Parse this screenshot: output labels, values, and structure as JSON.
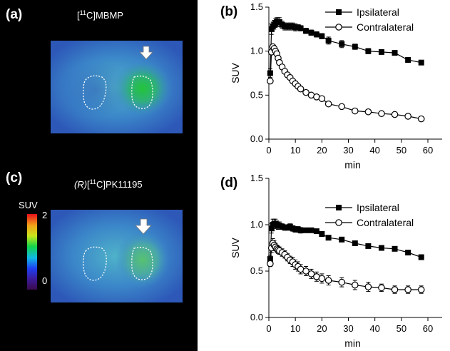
{
  "panels": {
    "a": {
      "letter": "(a)",
      "tracer_prefix": "[",
      "tracer_sup": "11",
      "tracer_suffix": "C]MBMP"
    },
    "c": {
      "letter": "(c)",
      "tracer_prefix_italic": "(R)",
      "tracer_prefix": "[",
      "tracer_sup": "11",
      "tracer_suffix": "C]PK11195"
    },
    "colorbar": {
      "label": "SUV",
      "max_label": "2",
      "min_label": "0"
    }
  },
  "chart_data": [
    {
      "panel": "(b)",
      "type": "line",
      "xlabel": "min",
      "ylabel": "SUV",
      "xlim": [
        0,
        60
      ],
      "ylim": [
        0,
        1.5
      ],
      "xticks": [
        "0",
        "10",
        "20",
        "30",
        "40",
        "50",
        "60"
      ],
      "yticks": [
        "0.0",
        "0.5",
        "1.0",
        "1.5"
      ],
      "legend_position": "top-right",
      "series": [
        {
          "name": "Ipsilateral",
          "marker": "filled-square",
          "x": [
            0.5,
            1,
            1.5,
            2,
            2.5,
            3,
            3.5,
            4,
            5,
            6,
            7,
            8,
            9,
            10,
            11,
            12,
            14,
            16,
            18,
            20,
            22.5,
            27.5,
            32.5,
            37.5,
            42.5,
            47.5,
            52.5,
            57.5
          ],
          "y": [
            0.75,
            1.25,
            1.28,
            1.3,
            1.32,
            1.33,
            1.33,
            1.33,
            1.3,
            1.28,
            1.28,
            1.28,
            1.28,
            1.27,
            1.27,
            1.26,
            1.23,
            1.21,
            1.19,
            1.17,
            1.12,
            1.08,
            1.05,
            1.0,
            0.99,
            0.98,
            0.9,
            0.87
          ],
          "err": [
            0.05,
            0.06,
            0.05,
            0.05,
            0.05,
            0.05,
            0.05,
            0.05,
            0.04,
            0.04,
            0.04,
            0.04,
            0.04,
            0.04,
            0.03,
            0.03,
            0.03,
            0.03,
            0.03,
            0.03,
            0.04,
            0.04,
            0.03,
            0.03,
            0.02,
            0.02,
            0.02,
            0.02
          ]
        },
        {
          "name": "Contralateral",
          "marker": "open-circle",
          "x": [
            0.5,
            1,
            1.5,
            2,
            2.5,
            3,
            3.5,
            4,
            5,
            6,
            7,
            8,
            9,
            10,
            11,
            12,
            14,
            16,
            18,
            20,
            22.5,
            27.5,
            32.5,
            37.5,
            42.5,
            47.5,
            52.5,
            57.5
          ],
          "y": [
            0.66,
            0.99,
            1.05,
            1.03,
            1.0,
            0.97,
            0.92,
            0.87,
            0.82,
            0.77,
            0.73,
            0.7,
            0.66,
            0.63,
            0.6,
            0.57,
            0.53,
            0.5,
            0.48,
            0.46,
            0.4,
            0.37,
            0.32,
            0.31,
            0.29,
            0.28,
            0.26,
            0.23
          ]
        }
      ]
    },
    {
      "panel": "(d)",
      "type": "line",
      "xlabel": "min",
      "ylabel": "SUV",
      "xlim": [
        0,
        60
      ],
      "ylim": [
        0,
        1.5
      ],
      "xticks": [
        "0",
        "10",
        "20",
        "30",
        "40",
        "50",
        "60"
      ],
      "yticks": [
        "0.0",
        "0.5",
        "1.0",
        "1.5"
      ],
      "legend_position": "top-right",
      "series": [
        {
          "name": "Ipsilateral",
          "marker": "filled-square",
          "x": [
            0.5,
            1,
            1.5,
            2,
            2.5,
            3,
            3.5,
            4,
            5,
            6,
            7,
            8,
            9,
            10,
            11,
            12,
            14,
            16,
            18,
            20,
            22.5,
            27.5,
            32.5,
            37.5,
            42.5,
            47.5,
            52.5,
            57.5
          ],
          "y": [
            0.63,
            0.96,
            1.0,
            1.01,
            1.01,
            1.0,
            0.99,
            0.99,
            0.98,
            0.97,
            0.97,
            0.98,
            0.96,
            0.95,
            0.95,
            0.94,
            0.94,
            0.94,
            0.93,
            0.9,
            0.86,
            0.84,
            0.8,
            0.77,
            0.75,
            0.74,
            0.7,
            0.65
          ],
          "err": [
            0.04,
            0.05,
            0.06,
            0.05,
            0.05,
            0.04,
            0.04,
            0.04,
            0.03,
            0.03,
            0.03,
            0.03,
            0.03,
            0.03,
            0.03,
            0.03,
            0.02,
            0.02,
            0.02,
            0.02,
            0.02,
            0.02,
            0.02,
            0.02,
            0.02,
            0.02,
            0.02,
            0.02
          ]
        },
        {
          "name": "Contralateral",
          "marker": "open-circle",
          "x": [
            0.5,
            1,
            1.5,
            2,
            2.5,
            3,
            3.5,
            4,
            5,
            6,
            7,
            8,
            9,
            10,
            11,
            12,
            14,
            16,
            18,
            20,
            22.5,
            27.5,
            32.5,
            37.5,
            42.5,
            47.5,
            52.5,
            57.5
          ],
          "y": [
            0.58,
            0.75,
            0.8,
            0.78,
            0.76,
            0.74,
            0.73,
            0.72,
            0.7,
            0.68,
            0.65,
            0.62,
            0.6,
            0.57,
            0.55,
            0.52,
            0.5,
            0.47,
            0.44,
            0.42,
            0.4,
            0.38,
            0.35,
            0.33,
            0.32,
            0.3,
            0.3,
            0.3
          ],
          "err": [
            0.03,
            0.05,
            0.05,
            0.05,
            0.04,
            0.04,
            0.04,
            0.04,
            0.04,
            0.04,
            0.04,
            0.04,
            0.05,
            0.05,
            0.05,
            0.05,
            0.05,
            0.05,
            0.05,
            0.05,
            0.05,
            0.05,
            0.05,
            0.05,
            0.04,
            0.04,
            0.04,
            0.04
          ]
        }
      ]
    }
  ]
}
